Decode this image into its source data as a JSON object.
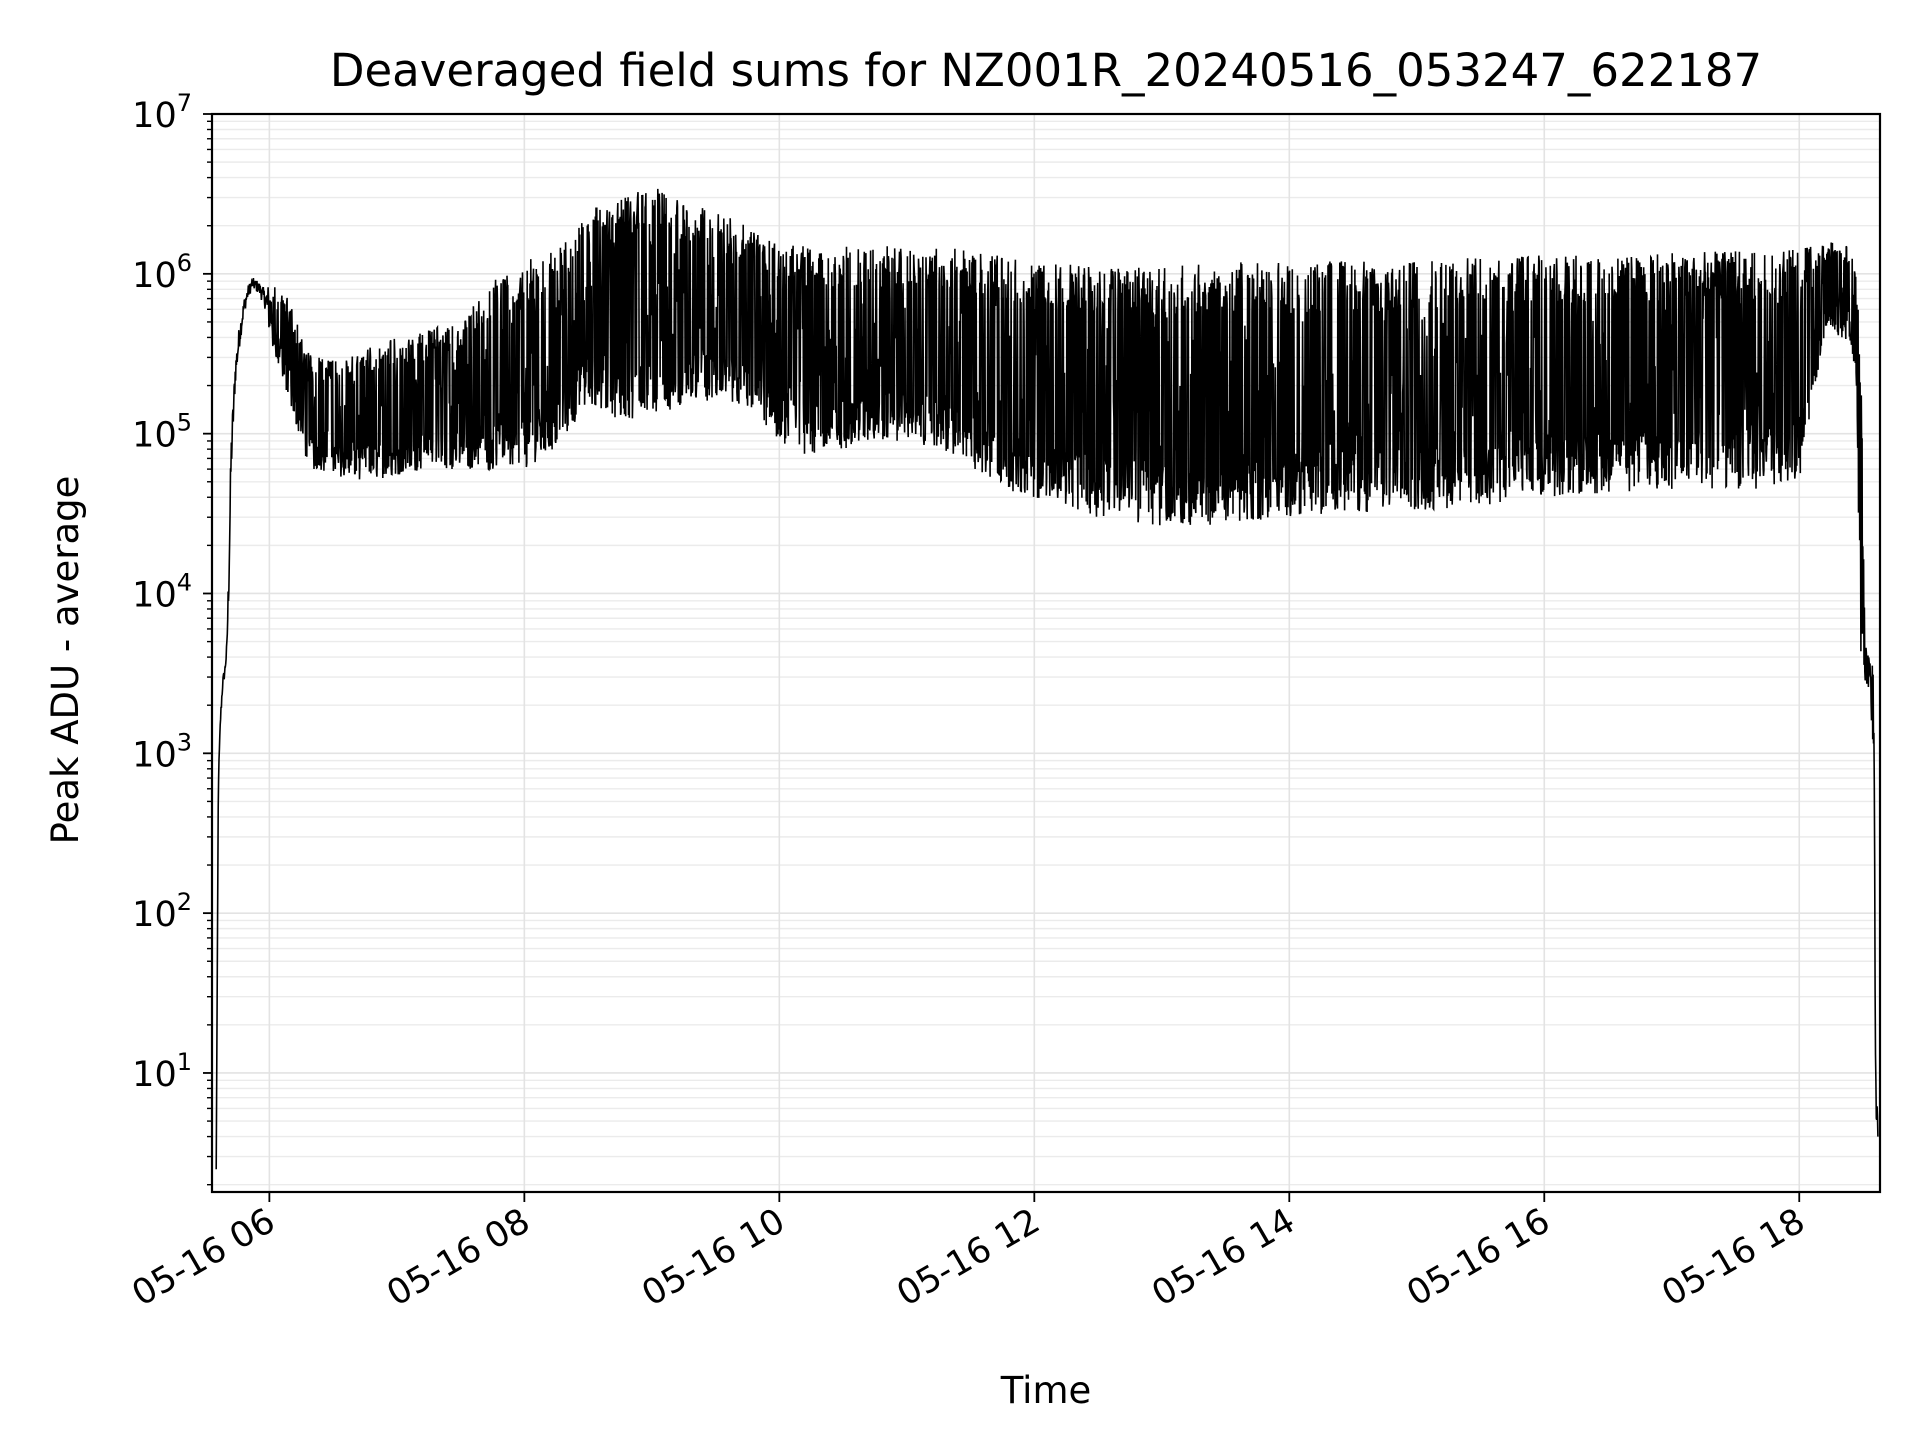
{
  "chart_data": {
    "type": "line",
    "title": "Deaveraged field sums for NZ001R_20240516_053247_622187",
    "xlabel": "Time",
    "ylabel": "Peak ADU - average",
    "x_scale": "time",
    "y_scale": "log",
    "xlim": [
      "05-16 05:33",
      "05-16 18:38"
    ],
    "ylim": [
      1.8,
      10000000
    ],
    "grid": true,
    "line_color": "#000000",
    "x_ticks": [
      "05-16 06",
      "05-16 08",
      "05-16 10",
      "05-16 12",
      "05-16 14",
      "05-16 16",
      "05-16 18"
    ],
    "y_ticks": [
      {
        "base": "10",
        "exp": "1",
        "value": 10
      },
      {
        "base": "10",
        "exp": "2",
        "value": 100
      },
      {
        "base": "10",
        "exp": "3",
        "value": 1000
      },
      {
        "base": "10",
        "exp": "4",
        "value": 10000
      },
      {
        "base": "10",
        "exp": "5",
        "value": 100000
      },
      {
        "base": "10",
        "exp": "6",
        "value": 1000000
      },
      {
        "base": "10",
        "exp": "7",
        "value": 10000000
      }
    ],
    "series": [
      {
        "x": [
          "05-16 05:35",
          "05-16 05:36",
          "05-16 05:37",
          "05-16 05:38",
          "05-16 05:39",
          "05-16 05:40",
          "05-16 05:41",
          "05-16 05:42",
          "05-16 05:44",
          "05-16 05:46",
          "05-16 05:48",
          "05-16 05:50",
          "05-16 05:52",
          "05-16 05:55",
          "05-16 05:58",
          "05-16 06:00",
          "05-16 06:05",
          "05-16 06:10",
          "05-16 06:15",
          "05-16 06:20",
          "05-16 06:30",
          "05-16 06:45",
          "05-16 07:00",
          "05-16 07:15",
          "05-16 07:30",
          "05-16 07:45",
          "05-16 08:00",
          "05-16 08:15",
          "05-16 08:30",
          "05-16 08:45",
          "05-16 09:00",
          "05-16 09:15",
          "05-16 09:30",
          "05-16 09:45",
          "05-16 10:00",
          "05-16 10:15",
          "05-16 10:30",
          "05-16 10:45",
          "05-16 11:00",
          "05-16 11:15",
          "05-16 11:30",
          "05-16 11:45",
          "05-16 12:00",
          "05-16 12:15",
          "05-16 12:30",
          "05-16 12:45",
          "05-16 13:00",
          "05-16 13:15",
          "05-16 13:30",
          "05-16 14:00",
          "05-16 14:30",
          "05-16 15:00",
          "05-16 15:30",
          "05-16 16:00",
          "05-16 16:30",
          "05-16 17:00",
          "05-16 17:30",
          "05-16 17:45",
          "05-16 18:00",
          "05-16 18:10",
          "05-16 18:15",
          "05-16 18:20",
          "05-16 18:24",
          "05-16 18:27",
          "05-16 18:29",
          "05-16 18:31",
          "05-16 18:33",
          "05-16 18:35",
          "05-16 18:36",
          "05-16 18:37"
        ],
        "low": [
          2.5,
          600,
          1500,
          2500,
          3000,
          4000,
          10000,
          50000,
          200000,
          350000,
          550000,
          700000,
          800000,
          750000,
          600000,
          400000,
          250000,
          150000,
          80000,
          60000,
          55000,
          50000,
          55000,
          60000,
          60000,
          58000,
          60000,
          80000,
          150000,
          120000,
          130000,
          150000,
          160000,
          140000,
          90000,
          70000,
          80000,
          90000,
          90000,
          80000,
          60000,
          45000,
          40000,
          35000,
          30000,
          28000,
          25000,
          25000,
          27000,
          30000,
          32000,
          33000,
          35000,
          40000,
          42000,
          45000,
          45000,
          45000,
          50000,
          300000,
          400000,
          400000,
          350000,
          150000,
          4000,
          2800,
          2500,
          1000,
          5,
          4
        ],
        "high": [
          2.5,
          700,
          1800,
          3000,
          3500,
          5000,
          20000,
          100000,
          300000,
          500000,
          700000,
          850000,
          950000,
          900000,
          800000,
          900000,
          800000,
          700000,
          400000,
          300000,
          300000,
          350000,
          400000,
          450000,
          500000,
          900000,
          1200000,
          1500000,
          2500000,
          3000000,
          3500000,
          3000000,
          2500000,
          2000000,
          1500000,
          1500000,
          1500000,
          1500000,
          1500000,
          1500000,
          1400000,
          1300000,
          1200000,
          1150000,
          1100000,
          1100000,
          1100000,
          1150000,
          1200000,
          1200000,
          1200000,
          1200000,
          1300000,
          1300000,
          1300000,
          1350000,
          1400000,
          1400000,
          1450000,
          1500000,
          1600000,
          1600000,
          1500000,
          1200000,
          300000,
          5000,
          4500,
          3500,
          20,
          4
        ]
      }
    ]
  }
}
